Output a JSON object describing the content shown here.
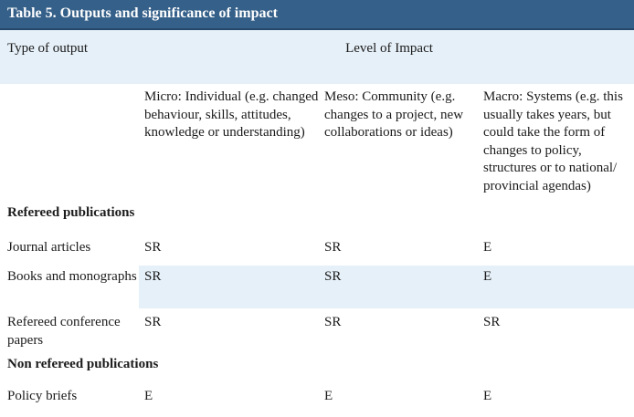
{
  "title": "Table 5. Outputs and significance of impact",
  "header": {
    "type_of_output": "Type of output",
    "level_of_impact": "Level of Impact",
    "micro": "Micro: Individual (e.g. changed behaviour, skills, attitudes, knowledge or understanding)",
    "meso": "Meso: Community (e.g. changes to a project, new collaborations or ideas)",
    "macro": "Macro: Systems (e.g. this usually takes years, but could take the form of changes to policy, structures or to national/ provincial agendas)"
  },
  "sections": [
    {
      "heading": "Refereed publications",
      "rows": [
        {
          "output": "Journal articles",
          "micro": "SR",
          "meso": "SR",
          "macro": "E"
        },
        {
          "output": "Books and monographs",
          "micro": "SR",
          "meso": "SR",
          "macro": "E"
        },
        {
          "output": "Refereed conference papers",
          "micro": "SR",
          "meso": "SR",
          "macro": "SR"
        }
      ]
    },
    {
      "heading": "Non refereed publications",
      "rows": [
        {
          "output": "Policy briefs",
          "micro": "E",
          "meso": "E",
          "macro": "E"
        }
      ]
    }
  ]
}
